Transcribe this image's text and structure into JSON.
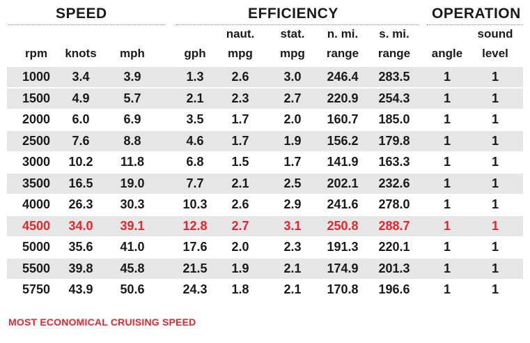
{
  "groups": {
    "speed": "SPEED",
    "efficiency": "EFFICIENCY",
    "operation": "OPERATION"
  },
  "columns": [
    {
      "line1": "",
      "line2": "rpm"
    },
    {
      "line1": "",
      "line2": "knots"
    },
    {
      "line1": "",
      "line2": "mph"
    },
    {
      "line1": "",
      "line2": "gph"
    },
    {
      "line1": "naut.",
      "line2": "mpg"
    },
    {
      "line1": "stat.",
      "line2": "mpg"
    },
    {
      "line1": "n. mi.",
      "line2": "range"
    },
    {
      "line1": "s. mi.",
      "line2": "range"
    },
    {
      "line1": "",
      "line2": "angle"
    },
    {
      "line1": "sound",
      "line2": "level"
    }
  ],
  "rows": [
    {
      "cells": [
        "1000",
        "3.4",
        "3.9",
        "1.3",
        "2.6",
        "3.0",
        "246.4",
        "283.5",
        "1",
        "1"
      ],
      "shaded": true,
      "highlight": false
    },
    {
      "cells": [
        "1500",
        "4.9",
        "5.7",
        "2.1",
        "2.3",
        "2.7",
        "220.9",
        "254.3",
        "1",
        "1"
      ],
      "shaded": true,
      "highlight": false
    },
    {
      "cells": [
        "2000",
        "6.0",
        "6.9",
        "3.5",
        "1.7",
        "2.0",
        "160.7",
        "185.0",
        "1",
        "1"
      ],
      "shaded": false,
      "highlight": false
    },
    {
      "cells": [
        "2500",
        "7.6",
        "8.8",
        "4.6",
        "1.7",
        "1.9",
        "156.2",
        "179.8",
        "1",
        "1"
      ],
      "shaded": true,
      "highlight": false
    },
    {
      "cells": [
        "3000",
        "10.2",
        "11.8",
        "6.8",
        "1.5",
        "1.7",
        "141.9",
        "163.3",
        "1",
        "1"
      ],
      "shaded": false,
      "highlight": false
    },
    {
      "cells": [
        "3500",
        "16.5",
        "19.0",
        "7.7",
        "2.1",
        "2.5",
        "202.1",
        "232.6",
        "1",
        "1"
      ],
      "shaded": true,
      "highlight": false
    },
    {
      "cells": [
        "4000",
        "26.3",
        "30.3",
        "10.3",
        "2.6",
        "2.9",
        "241.6",
        "278.0",
        "1",
        "1"
      ],
      "shaded": false,
      "highlight": false
    },
    {
      "cells": [
        "4500",
        "34.0",
        "39.1",
        "12.8",
        "2.7",
        "3.1",
        "250.8",
        "288.7",
        "1",
        "1"
      ],
      "shaded": true,
      "highlight": true
    },
    {
      "cells": [
        "5000",
        "35.6",
        "41.0",
        "17.6",
        "2.0",
        "2.3",
        "191.3",
        "220.1",
        "1",
        "1"
      ],
      "shaded": false,
      "highlight": false
    },
    {
      "cells": [
        "5500",
        "39.8",
        "45.8",
        "21.5",
        "1.9",
        "2.1",
        "174.9",
        "201.3",
        "1",
        "1"
      ],
      "shaded": true,
      "highlight": false
    },
    {
      "cells": [
        "5750",
        "43.9",
        "50.6",
        "24.3",
        "1.8",
        "2.1",
        "170.8",
        "196.6",
        "1",
        "1"
      ],
      "shaded": false,
      "highlight": false
    }
  ],
  "footnote": "MOST ECONOMICAL CRUISING SPEED",
  "colors": {
    "highlight": "#e2282e",
    "row_shade": "#e6e6e6"
  }
}
